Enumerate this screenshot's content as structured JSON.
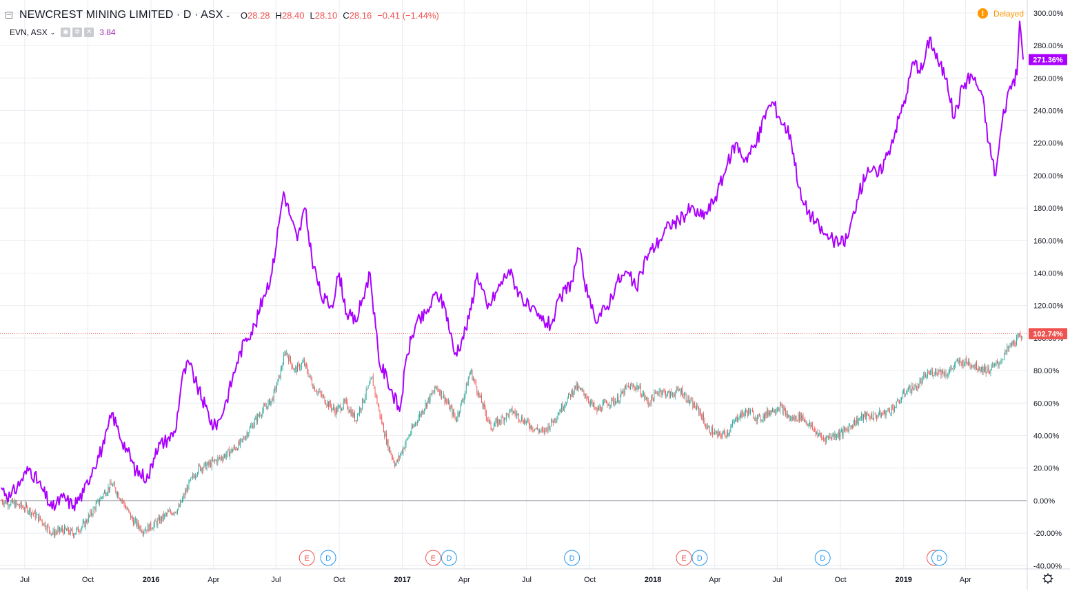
{
  "legend": {
    "symbol_title": "NEWCREST MINING LIMITED · D · ASX",
    "ohlc": {
      "open_label": "O",
      "open": "28.28",
      "high_label": "H",
      "high": "28.40",
      "low_label": "L",
      "low": "28.10",
      "close_label": "C",
      "close": "28.16"
    },
    "change": "−0.41 (−1.44%)"
  },
  "compare": {
    "label": "EVN, ASX",
    "value": "3.84"
  },
  "status": {
    "delayed": "Delayed",
    "delayed_icon": "info-icon"
  },
  "colors": {
    "evn_line": "#aa00ff",
    "up_candle": "#26a69a",
    "down_candle": "#ef5350",
    "price_line": "#ef5350",
    "grid": "#e9ecf0"
  },
  "axis_labels": {
    "price_tag_evn": "271.36%",
    "price_tag_ncm": "102.74%"
  },
  "chart_data": {
    "type": "line",
    "y_unit": "%",
    "ylim": [
      -42,
      308
    ],
    "xlim": [
      "2015-05-28",
      "2019-06-24"
    ],
    "y_ticks": [
      "300.00%",
      "280.00%",
      "260.00%",
      "240.00%",
      "220.00%",
      "200.00%",
      "180.00%",
      "160.00%",
      "140.00%",
      "120.00%",
      "100.00%",
      "80.00%",
      "60.00%",
      "40.00%",
      "20.00%",
      "0.00%",
      "-20.00%",
      "-40.00%"
    ],
    "y_tick_values": [
      300,
      280,
      260,
      240,
      220,
      200,
      180,
      160,
      140,
      120,
      100,
      80,
      60,
      40,
      20,
      0,
      -20,
      -40
    ],
    "x_ticks": [
      {
        "label": "Jul",
        "date": "2015-07-01",
        "bold": false
      },
      {
        "label": "Oct",
        "date": "2015-10-01",
        "bold": false
      },
      {
        "label": "2016",
        "date": "2016-01-01",
        "bold": true
      },
      {
        "label": "Apr",
        "date": "2016-04-01",
        "bold": false
      },
      {
        "label": "Jul",
        "date": "2016-07-01",
        "bold": false
      },
      {
        "label": "Oct",
        "date": "2016-10-01",
        "bold": false
      },
      {
        "label": "2017",
        "date": "2017-01-01",
        "bold": true
      },
      {
        "label": "Apr",
        "date": "2017-04-01",
        "bold": false
      },
      {
        "label": "Jul",
        "date": "2017-07-01",
        "bold": false
      },
      {
        "label": "Oct",
        "date": "2017-10-01",
        "bold": false
      },
      {
        "label": "2018",
        "date": "2018-01-01",
        "bold": true
      },
      {
        "label": "Apr",
        "date": "2018-04-01",
        "bold": false
      },
      {
        "label": "Jul",
        "date": "2018-07-01",
        "bold": false
      },
      {
        "label": "Oct",
        "date": "2018-10-01",
        "bold": false
      },
      {
        "label": "2019",
        "date": "2019-01-01",
        "bold": true
      },
      {
        "label": "Apr",
        "date": "2019-04-01",
        "bold": false
      }
    ],
    "series": [
      {
        "name": "EVN, ASX",
        "style": "line",
        "points": [
          [
            "2015-05-28",
            8
          ],
          [
            "2015-06-10",
            2
          ],
          [
            "2015-06-25",
            12
          ],
          [
            "2015-07-08",
            20
          ],
          [
            "2015-07-25",
            8
          ],
          [
            "2015-08-10",
            -5
          ],
          [
            "2015-08-25",
            2
          ],
          [
            "2015-09-10",
            -3
          ],
          [
            "2015-09-25",
            5
          ],
          [
            "2015-10-08",
            20
          ],
          [
            "2015-10-25",
            35
          ],
          [
            "2015-11-05",
            54
          ],
          [
            "2015-11-15",
            42
          ],
          [
            "2015-11-28",
            30
          ],
          [
            "2015-12-10",
            18
          ],
          [
            "2015-12-28",
            14
          ],
          [
            "2016-01-08",
            32
          ],
          [
            "2016-01-25",
            38
          ],
          [
            "2016-02-05",
            42
          ],
          [
            "2016-02-15",
            75
          ],
          [
            "2016-02-25",
            85
          ],
          [
            "2016-03-08",
            70
          ],
          [
            "2016-03-20",
            58
          ],
          [
            "2016-04-01",
            45
          ],
          [
            "2016-04-10",
            50
          ],
          [
            "2016-04-20",
            62
          ],
          [
            "2016-05-05",
            85
          ],
          [
            "2016-05-18",
            100
          ],
          [
            "2016-06-01",
            108
          ],
          [
            "2016-06-12",
            125
          ],
          [
            "2016-06-25",
            140
          ],
          [
            "2016-07-05",
            170
          ],
          [
            "2016-07-12",
            190
          ],
          [
            "2016-07-22",
            175
          ],
          [
            "2016-08-01",
            160
          ],
          [
            "2016-08-12",
            180
          ],
          [
            "2016-08-22",
            150
          ],
          [
            "2016-09-05",
            125
          ],
          [
            "2016-09-20",
            120
          ],
          [
            "2016-10-01",
            140
          ],
          [
            "2016-10-12",
            115
          ],
          [
            "2016-10-25",
            110
          ],
          [
            "2016-11-08",
            130
          ],
          [
            "2016-11-15",
            140
          ],
          [
            "2016-11-28",
            85
          ],
          [
            "2016-12-10",
            75
          ],
          [
            "2016-12-28",
            55
          ],
          [
            "2017-01-08",
            90
          ],
          [
            "2017-01-20",
            108
          ],
          [
            "2017-02-05",
            115
          ],
          [
            "2017-02-20",
            128
          ],
          [
            "2017-03-05",
            118
          ],
          [
            "2017-03-18",
            90
          ],
          [
            "2017-03-28",
            98
          ],
          [
            "2017-04-08",
            112
          ],
          [
            "2017-04-20",
            140
          ],
          [
            "2017-05-05",
            118
          ],
          [
            "2017-05-20",
            130
          ],
          [
            "2017-06-05",
            142
          ],
          [
            "2017-06-20",
            128
          ],
          [
            "2017-07-05",
            118
          ],
          [
            "2017-07-20",
            112
          ],
          [
            "2017-08-05",
            108
          ],
          [
            "2017-08-20",
            125
          ],
          [
            "2017-09-05",
            135
          ],
          [
            "2017-09-15",
            155
          ],
          [
            "2017-09-28",
            125
          ],
          [
            "2017-10-08",
            112
          ],
          [
            "2017-10-25",
            118
          ],
          [
            "2017-11-10",
            135
          ],
          [
            "2017-11-25",
            140
          ],
          [
            "2017-12-08",
            130
          ],
          [
            "2017-12-22",
            150
          ],
          [
            "2018-01-10",
            160
          ],
          [
            "2018-01-25",
            170
          ],
          [
            "2018-02-08",
            172
          ],
          [
            "2018-02-25",
            180
          ],
          [
            "2018-03-10",
            175
          ],
          [
            "2018-03-22",
            178
          ],
          [
            "2018-04-05",
            190
          ],
          [
            "2018-04-18",
            205
          ],
          [
            "2018-05-01",
            220
          ],
          [
            "2018-05-15",
            210
          ],
          [
            "2018-06-01",
            220
          ],
          [
            "2018-06-15",
            240
          ],
          [
            "2018-06-25",
            245
          ],
          [
            "2018-07-05",
            235
          ],
          [
            "2018-07-20",
            225
          ],
          [
            "2018-08-05",
            185
          ],
          [
            "2018-08-20",
            175
          ],
          [
            "2018-09-05",
            165
          ],
          [
            "2018-09-20",
            160
          ],
          [
            "2018-10-01",
            158
          ],
          [
            "2018-10-12",
            162
          ],
          [
            "2018-10-25",
            185
          ],
          [
            "2018-11-10",
            205
          ],
          [
            "2018-11-25",
            200
          ],
          [
            "2018-12-10",
            215
          ],
          [
            "2018-12-25",
            235
          ],
          [
            "2019-01-05",
            250
          ],
          [
            "2019-01-15",
            270
          ],
          [
            "2019-01-28",
            265
          ],
          [
            "2019-02-08",
            285
          ],
          [
            "2019-02-20",
            270
          ],
          [
            "2019-03-05",
            260
          ],
          [
            "2019-03-15",
            235
          ],
          [
            "2019-03-28",
            255
          ],
          [
            "2019-04-10",
            262
          ],
          [
            "2019-04-25",
            250
          ],
          [
            "2019-05-05",
            220
          ],
          [
            "2019-05-15",
            200
          ],
          [
            "2019-05-25",
            235
          ],
          [
            "2019-06-05",
            255
          ],
          [
            "2019-06-15",
            262
          ],
          [
            "2019-06-19",
            295
          ],
          [
            "2019-06-24",
            271.36
          ]
        ]
      },
      {
        "name": "NEWCREST MINING LIMITED",
        "style": "candles",
        "points": [
          [
            "2015-05-28",
            0
          ],
          [
            "2015-06-15",
            -2
          ],
          [
            "2015-07-05",
            -5
          ],
          [
            "2015-07-25",
            -12
          ],
          [
            "2015-08-10",
            -20
          ],
          [
            "2015-08-25",
            -18
          ],
          [
            "2015-09-10",
            -20
          ],
          [
            "2015-09-25",
            -15
          ],
          [
            "2015-10-10",
            -5
          ],
          [
            "2015-10-25",
            5
          ],
          [
            "2015-11-05",
            10
          ],
          [
            "2015-11-20",
            0
          ],
          [
            "2015-12-05",
            -12
          ],
          [
            "2015-12-20",
            -18
          ],
          [
            "2016-01-05",
            -15
          ],
          [
            "2016-01-25",
            -8
          ],
          [
            "2016-02-10",
            -5
          ],
          [
            "2016-02-25",
            10
          ],
          [
            "2016-03-10",
            20
          ],
          [
            "2016-03-25",
            22
          ],
          [
            "2016-04-10",
            26
          ],
          [
            "2016-04-25",
            30
          ],
          [
            "2016-05-10",
            35
          ],
          [
            "2016-05-25",
            45
          ],
          [
            "2016-06-10",
            55
          ],
          [
            "2016-06-25",
            62
          ],
          [
            "2016-07-05",
            75
          ],
          [
            "2016-07-15",
            92
          ],
          [
            "2016-07-28",
            80
          ],
          [
            "2016-08-10",
            85
          ],
          [
            "2016-08-25",
            70
          ],
          [
            "2016-09-10",
            62
          ],
          [
            "2016-09-25",
            55
          ],
          [
            "2016-10-10",
            60
          ],
          [
            "2016-10-25",
            50
          ],
          [
            "2016-11-05",
            62
          ],
          [
            "2016-11-18",
            75
          ],
          [
            "2016-11-28",
            55
          ],
          [
            "2016-12-10",
            35
          ],
          [
            "2016-12-22",
            22
          ],
          [
            "2017-01-05",
            35
          ],
          [
            "2017-01-20",
            48
          ],
          [
            "2017-02-05",
            60
          ],
          [
            "2017-02-20",
            70
          ],
          [
            "2017-03-05",
            62
          ],
          [
            "2017-03-20",
            50
          ],
          [
            "2017-04-01",
            65
          ],
          [
            "2017-04-10",
            80
          ],
          [
            "2017-04-25",
            62
          ],
          [
            "2017-05-10",
            45
          ],
          [
            "2017-05-25",
            50
          ],
          [
            "2017-06-10",
            55
          ],
          [
            "2017-06-25",
            50
          ],
          [
            "2017-07-10",
            45
          ],
          [
            "2017-07-25",
            42
          ],
          [
            "2017-08-10",
            50
          ],
          [
            "2017-08-25",
            60
          ],
          [
            "2017-09-10",
            70
          ],
          [
            "2017-09-25",
            65
          ],
          [
            "2017-10-10",
            55
          ],
          [
            "2017-10-25",
            60
          ],
          [
            "2017-11-10",
            62
          ],
          [
            "2017-11-25",
            70
          ],
          [
            "2017-12-10",
            70
          ],
          [
            "2017-12-25",
            60
          ],
          [
            "2018-01-10",
            68
          ],
          [
            "2018-01-25",
            65
          ],
          [
            "2018-02-10",
            68
          ],
          [
            "2018-02-25",
            60
          ],
          [
            "2018-03-10",
            55
          ],
          [
            "2018-03-20",
            45
          ],
          [
            "2018-04-05",
            40
          ],
          [
            "2018-04-20",
            42
          ],
          [
            "2018-05-05",
            52
          ],
          [
            "2018-05-20",
            55
          ],
          [
            "2018-06-05",
            50
          ],
          [
            "2018-06-20",
            55
          ],
          [
            "2018-07-05",
            58
          ],
          [
            "2018-07-20",
            50
          ],
          [
            "2018-08-05",
            52
          ],
          [
            "2018-08-20",
            45
          ],
          [
            "2018-09-05",
            38
          ],
          [
            "2018-09-20",
            40
          ],
          [
            "2018-10-05",
            42
          ],
          [
            "2018-10-20",
            48
          ],
          [
            "2018-11-05",
            52
          ],
          [
            "2018-11-20",
            52
          ],
          [
            "2018-12-05",
            54
          ],
          [
            "2018-12-20",
            58
          ],
          [
            "2019-01-05",
            68
          ],
          [
            "2019-01-20",
            70
          ],
          [
            "2019-02-05",
            78
          ],
          [
            "2019-02-20",
            80
          ],
          [
            "2019-03-05",
            78
          ],
          [
            "2019-03-20",
            85
          ],
          [
            "2019-04-05",
            85
          ],
          [
            "2019-04-20",
            82
          ],
          [
            "2019-05-05",
            80
          ],
          [
            "2019-05-20",
            85
          ],
          [
            "2019-06-05",
            95
          ],
          [
            "2019-06-24",
            102.74
          ]
        ]
      }
    ],
    "events": [
      {
        "label": "E",
        "date": "2016-08-15",
        "type": "earnings"
      },
      {
        "label": "D",
        "date": "2016-09-15",
        "type": "dividend"
      },
      {
        "label": "E",
        "date": "2017-02-15",
        "type": "earnings"
      },
      {
        "label": "D",
        "date": "2017-03-10",
        "type": "dividend"
      },
      {
        "label": "D",
        "date": "2017-09-05",
        "type": "dividend"
      },
      {
        "label": "E",
        "date": "2018-02-15",
        "type": "earnings"
      },
      {
        "label": "D",
        "date": "2018-03-10",
        "type": "dividend"
      },
      {
        "label": "D",
        "date": "2018-09-05",
        "type": "dividend"
      },
      {
        "label": "E",
        "date": "2019-02-15",
        "type": "earnings"
      },
      {
        "label": "D",
        "date": "2019-02-22",
        "type": "dividend"
      }
    ]
  }
}
